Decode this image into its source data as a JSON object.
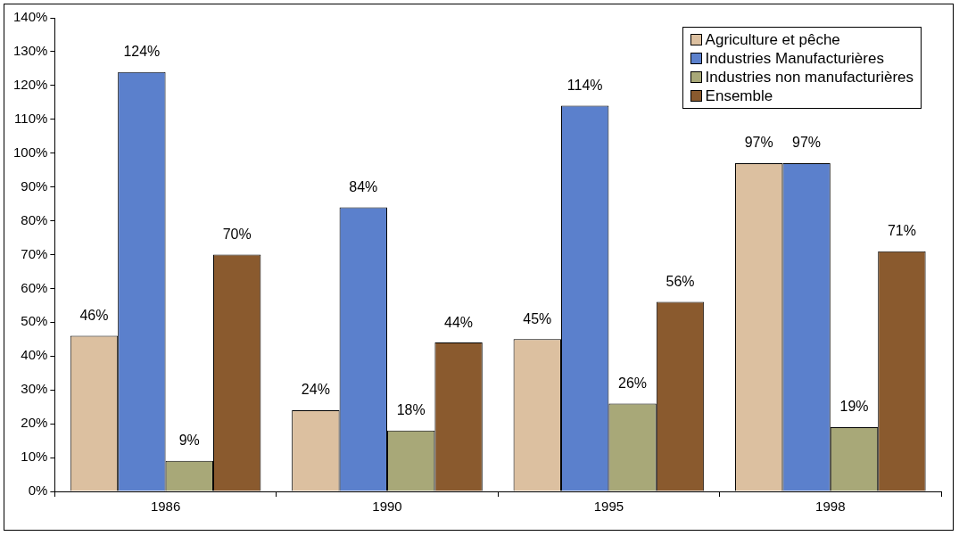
{
  "chart_data": {
    "type": "bar",
    "categories": [
      "1986",
      "1990",
      "1995",
      "1998"
    ],
    "series": [
      {
        "name": "Agriculture et pêche",
        "color": "#dcc0a0",
        "values": [
          46,
          24,
          45,
          97
        ],
        "value_labels": [
          "46%",
          "24%",
          "45%",
          "97%"
        ]
      },
      {
        "name": "Industries Manufacturières",
        "color": "#5b80cc",
        "values": [
          124,
          84,
          114,
          97
        ],
        "value_labels": [
          "124%",
          "84%",
          "114%",
          "97%"
        ]
      },
      {
        "name": "Industries non manufacturières",
        "color": "#a8a878",
        "values": [
          9,
          18,
          26,
          19
        ],
        "value_labels": [
          "9%",
          "18%",
          "26%",
          "19%"
        ]
      },
      {
        "name": "Ensemble",
        "color": "#8a5a2e",
        "values": [
          70,
          44,
          56,
          71
        ],
        "value_labels": [
          "70%",
          "44%",
          "56%",
          "71%"
        ]
      }
    ],
    "ylim": [
      0,
      140
    ],
    "yticks": [
      {
        "value": 0,
        "label": "0%"
      },
      {
        "value": 10,
        "label": "10%"
      },
      {
        "value": 20,
        "label": "20%"
      },
      {
        "value": 30,
        "label": "30%"
      },
      {
        "value": 40,
        "label": "40%"
      },
      {
        "value": 50,
        "label": "50%"
      },
      {
        "value": 60,
        "label": "60%"
      },
      {
        "value": 70,
        "label": "70%"
      },
      {
        "value": 80,
        "label": "80%"
      },
      {
        "value": 90,
        "label": "90%"
      },
      {
        "value": 100,
        "label": "100%"
      },
      {
        "value": 110,
        "label": "110%"
      },
      {
        "value": 120,
        "label": "120%"
      },
      {
        "value": 130,
        "label": "130%"
      },
      {
        "value": 140,
        "label": "140%"
      }
    ],
    "grid": false,
    "legend": "top right"
  }
}
